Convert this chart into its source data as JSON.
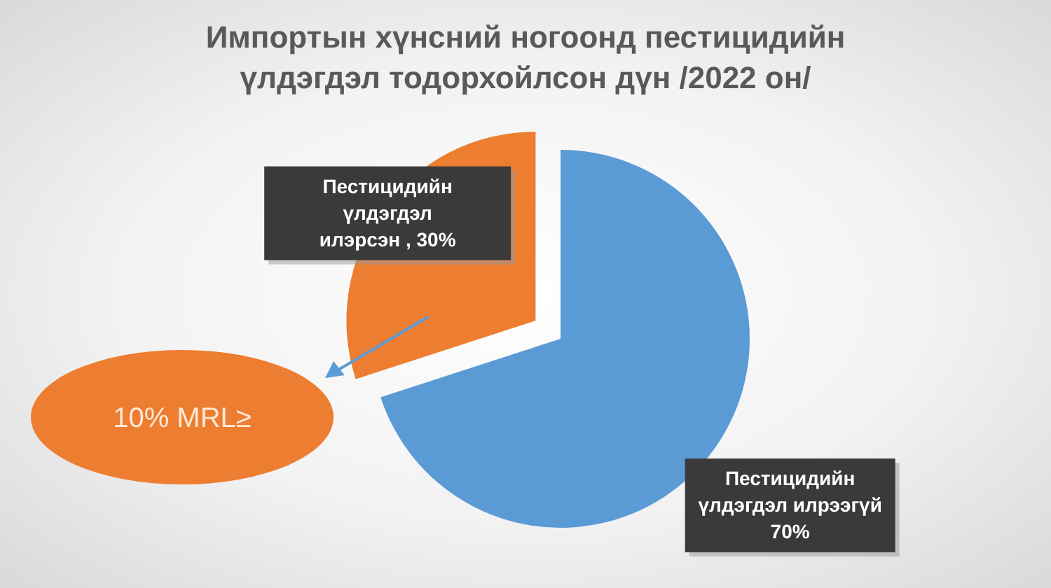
{
  "chart_data": {
    "type": "pie",
    "title": "Импортын хүнсний ногоонд пестицидийн үлдэгдэл тодорхойлсон дүн /2022 он/",
    "categories": [
      "Пестицидийн үлдэгдэл илрээгүй",
      "Пестицидийн үлдэгдэл илэрсэн"
    ],
    "values": [
      70,
      30
    ],
    "colors": [
      "#5b9bd5",
      "#ed7d31"
    ],
    "value_labels": [
      "70%",
      "30%"
    ],
    "annotations": [
      "10% MRL≥"
    ]
  }
}
